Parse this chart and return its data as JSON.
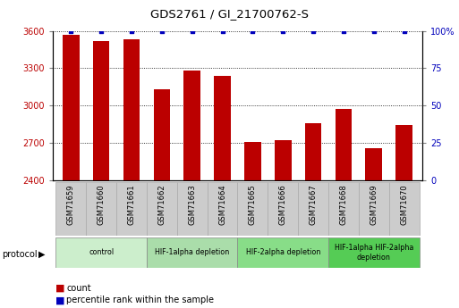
{
  "title": "GDS2761 / GI_21700762-S",
  "samples": [
    "GSM71659",
    "GSM71660",
    "GSM71661",
    "GSM71662",
    "GSM71663",
    "GSM71664",
    "GSM71665",
    "GSM71666",
    "GSM71667",
    "GSM71668",
    "GSM71669",
    "GSM71670"
  ],
  "counts": [
    3570,
    3520,
    3530,
    3130,
    3280,
    3240,
    2710,
    2720,
    2860,
    2970,
    2660,
    2840
  ],
  "percentile_ranks": [
    100,
    100,
    100,
    100,
    100,
    100,
    100,
    100,
    100,
    100,
    100,
    100
  ],
  "bar_color": "#bb0000",
  "dot_color": "#0000bb",
  "ylim_left": [
    2400,
    3600
  ],
  "ylim_right": [
    0,
    100
  ],
  "yticks_left": [
    2400,
    2700,
    3000,
    3300,
    3600
  ],
  "yticks_right": [
    0,
    25,
    50,
    75,
    100
  ],
  "protocol_groups": [
    {
      "label": "control",
      "start": 0,
      "end": 2,
      "color": "#cceecc"
    },
    {
      "label": "HIF-1alpha depletion",
      "start": 3,
      "end": 5,
      "color": "#aaddaa"
    },
    {
      "label": "HIF-2alpha depletion",
      "start": 6,
      "end": 8,
      "color": "#88dd88"
    },
    {
      "label": "HIF-1alpha HIF-2alpha\ndepletion",
      "start": 9,
      "end": 11,
      "color": "#55cc55"
    }
  ],
  "ticklabel_bg": "#cccccc",
  "ticklabel_edge": "#aaaaaa"
}
